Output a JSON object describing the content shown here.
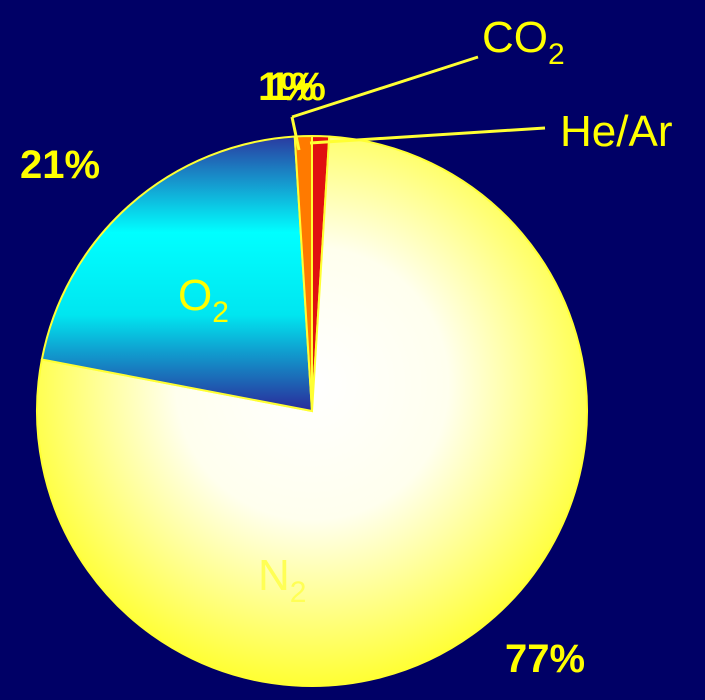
{
  "chart_data": {
    "type": "pie",
    "start_angle_deg": 0,
    "direction": "clockwise",
    "slices": [
      {
        "label": "He/Ar",
        "label_main": "He/Ar",
        "label_sub": "",
        "value": 1,
        "value_label": "1%",
        "color": "#e01010"
      },
      {
        "label": "N2",
        "label_main": "N",
        "label_sub": "2",
        "value": 77,
        "value_label": "77%",
        "color": "#ffff66"
      },
      {
        "label": "O2",
        "label_main": "O",
        "label_sub": "2",
        "value": 21,
        "value_label": "21%",
        "color": "#00ffff"
      },
      {
        "label": "CO2",
        "label_main": "CO",
        "label_sub": "2",
        "value": 1,
        "value_label": "1%",
        "color": "#ff7a00"
      }
    ]
  },
  "colors": {
    "background": "#000066",
    "label_text": "#ffff00",
    "slice_outline": "#ffff33"
  }
}
